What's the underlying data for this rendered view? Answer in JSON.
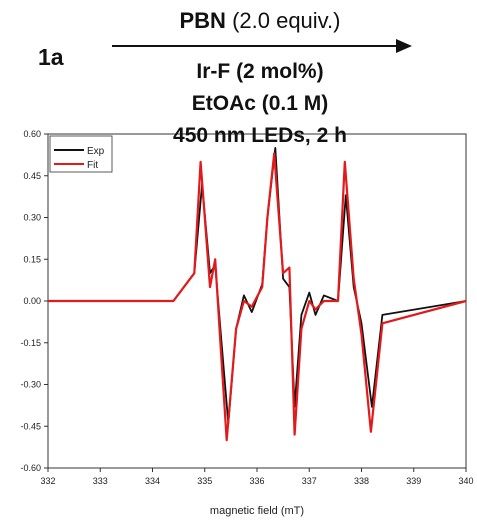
{
  "scheme": {
    "compound": "1a",
    "reagent_bold": "PBN",
    "reagent_rest": " (2.0 equiv.)",
    "conditions": [
      "Ir-F (2 mol%)",
      "EtOAc (0.1 M)",
      "450 nm LEDs, 2 h"
    ]
  },
  "chart_data": {
    "type": "line",
    "title": "",
    "xlabel": "magnetic field (mT)",
    "ylabel": "",
    "xlim": [
      332,
      340
    ],
    "ylim": [
      -0.6,
      0.6
    ],
    "xticks": [
      332,
      333,
      334,
      335,
      336,
      337,
      338,
      339,
      340
    ],
    "yticks": [
      -0.6,
      -0.45,
      -0.3,
      -0.15,
      0.0,
      0.15,
      0.3,
      0.45,
      0.6
    ],
    "ytick_labels": [
      "-0.60",
      "-0.45",
      "-0.30",
      "-0.15",
      "0.00",
      "0.15",
      "0.30",
      "0.45",
      "0.60"
    ],
    "grid": false,
    "legend_position": "top-left",
    "series": [
      {
        "name": "Exp",
        "color": "#111111",
        "x": [
          332.0,
          334.4,
          334.8,
          334.95,
          335.1,
          335.2,
          335.3,
          335.45,
          335.6,
          335.75,
          335.9,
          336.1,
          336.2,
          336.35,
          336.5,
          336.62,
          336.72,
          336.85,
          337.0,
          337.12,
          337.28,
          337.55,
          337.7,
          337.85,
          338.0,
          338.2,
          338.4,
          340.0
        ],
        "y": [
          0.0,
          0.0,
          0.1,
          0.42,
          0.1,
          0.13,
          -0.1,
          -0.44,
          -0.1,
          0.02,
          -0.04,
          0.06,
          0.3,
          0.55,
          0.08,
          0.05,
          -0.38,
          -0.05,
          0.03,
          -0.05,
          0.02,
          0.0,
          0.38,
          0.05,
          -0.08,
          -0.38,
          -0.05,
          0.0
        ]
      },
      {
        "name": "Fit",
        "color": "#e31a1c",
        "x": [
          332.0,
          334.4,
          334.8,
          334.92,
          335.1,
          335.2,
          335.3,
          335.42,
          335.6,
          335.75,
          335.9,
          336.1,
          336.2,
          336.33,
          336.5,
          336.62,
          336.72,
          336.85,
          337.0,
          337.12,
          337.28,
          337.55,
          337.68,
          337.85,
          338.0,
          338.18,
          338.4,
          340.0
        ],
        "y": [
          0.0,
          0.0,
          0.1,
          0.5,
          0.05,
          0.15,
          -0.15,
          -0.5,
          -0.1,
          0.0,
          -0.02,
          0.05,
          0.3,
          0.53,
          0.1,
          0.12,
          -0.48,
          -0.1,
          0.0,
          -0.03,
          0.0,
          0.0,
          0.5,
          0.08,
          -0.12,
          -0.47,
          -0.08,
          0.0
        ]
      }
    ]
  }
}
